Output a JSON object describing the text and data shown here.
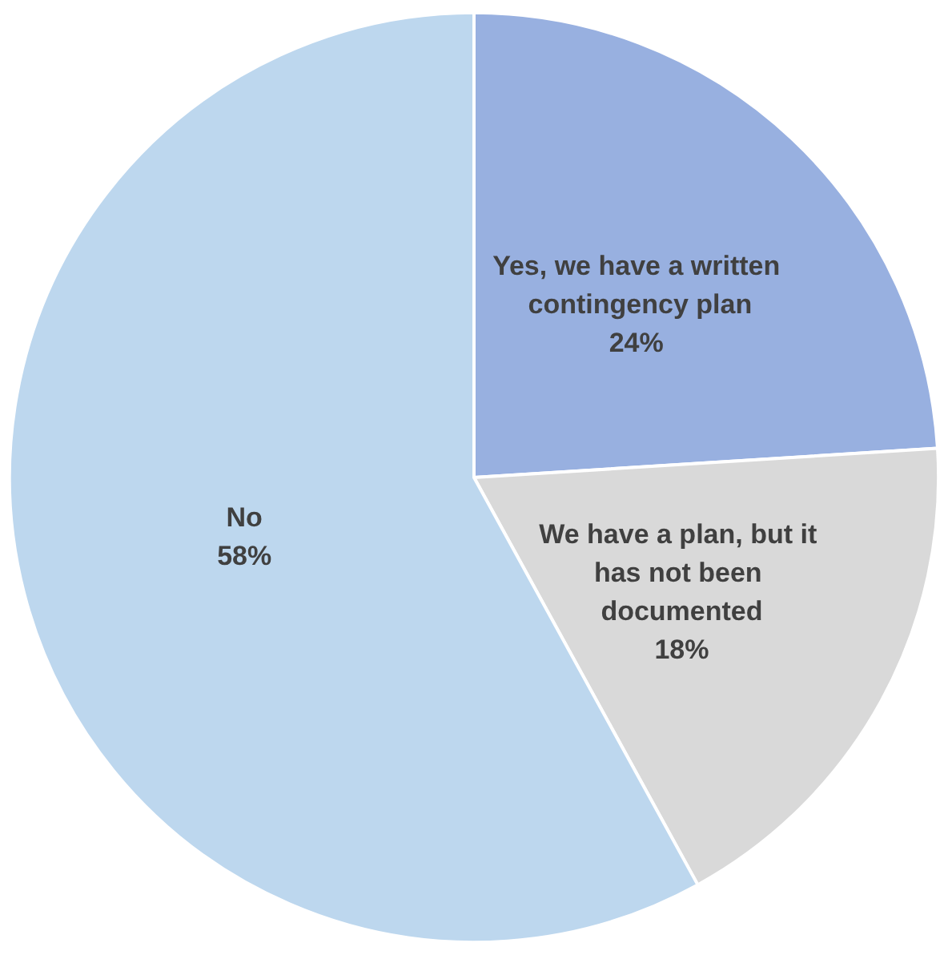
{
  "chart_data": {
    "type": "pie",
    "categories": [
      "Yes, we have a written contingency plan",
      "We have a plan, but it has not been documented",
      "No"
    ],
    "values": [
      24,
      18,
      58
    ],
    "colors": [
      "#98b0e0",
      "#d9d9d9",
      "#bdd7ee"
    ],
    "value_labels": [
      "24%",
      "18%",
      "58%"
    ],
    "legend": false
  }
}
